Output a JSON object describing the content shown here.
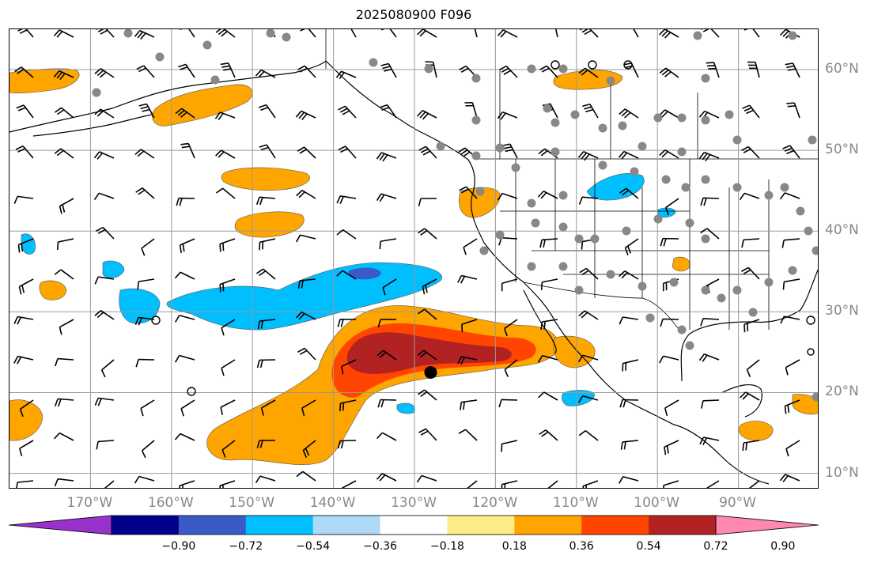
{
  "title": "2025080900 F096",
  "map": {
    "lon_range": [
      -180,
      -80
    ],
    "lat_range": [
      8,
      65
    ],
    "lon_ticks": [
      {
        "value": -170,
        "label": "170°W"
      },
      {
        "value": -160,
        "label": "160°W"
      },
      {
        "value": -150,
        "label": "150°W"
      },
      {
        "value": -140,
        "label": "140°W"
      },
      {
        "value": -130,
        "label": "130°W"
      },
      {
        "value": -120,
        "label": "120°W"
      },
      {
        "value": -110,
        "label": "110°W"
      },
      {
        "value": -100,
        "label": "100°W"
      },
      {
        "value": -90,
        "label": "90°W"
      }
    ],
    "lat_ticks": [
      {
        "value": 60,
        "label": "60°N"
      },
      {
        "value": 50,
        "label": "50°N"
      },
      {
        "value": 40,
        "label": "40°N"
      },
      {
        "value": 30,
        "label": "30°N"
      },
      {
        "value": 20,
        "label": "20°N"
      },
      {
        "value": 10,
        "label": "10°N"
      }
    ],
    "marker": {
      "lon": -128,
      "lat": 22.5,
      "color": "#000000"
    },
    "gridlines": true
  },
  "colorbar": {
    "colors": [
      "#9932cc",
      "#00008b",
      "#3a5bc7",
      "#00bfff",
      "#add8f7",
      "#ffffff",
      "#ffeb8a",
      "#ffa500",
      "#ff4500",
      "#b22222",
      "#ff88b0"
    ],
    "tick_labels": [
      "−0.90",
      "−0.72",
      "−0.54",
      "−0.36",
      "−0.18",
      "0.18",
      "0.36",
      "0.54",
      "0.72",
      "0.90"
    ],
    "extend": "both"
  }
}
